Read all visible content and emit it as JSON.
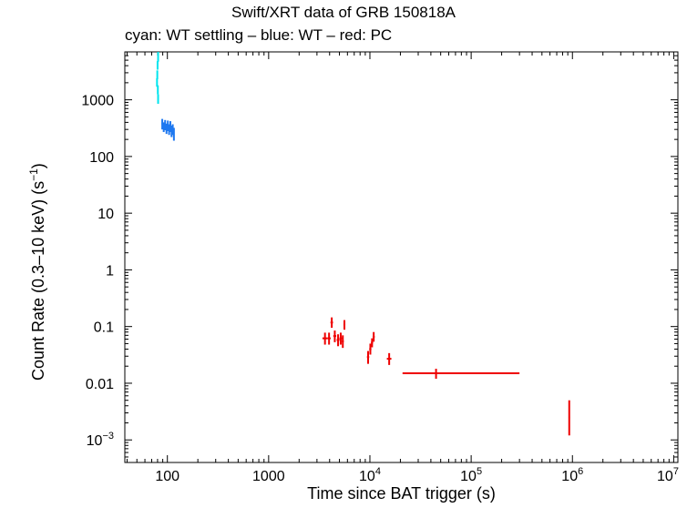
{
  "chart_data": {
    "type": "scatter",
    "title": "Swift/XRT data of GRB 150818A",
    "subtitle": "cyan: WT settling – blue: WT – red: PC",
    "xlabel": "Time since BAT trigger (s)",
    "ylabel": {
      "main": "Count Rate (0.3–10 keV) (s",
      "exp": "−1",
      "close": ")"
    },
    "xscale": "log",
    "yscale": "log",
    "xlim": [
      38,
      11000000
    ],
    "ylim": [
      0.0004,
      7000
    ],
    "x_ticks": [
      {
        "value": 100,
        "label": "100"
      },
      {
        "value": 1000,
        "label": "1000"
      },
      {
        "value": 10000,
        "base": "10",
        "exp": "4"
      },
      {
        "value": 100000,
        "base": "10",
        "exp": "5"
      },
      {
        "value": 1000000,
        "base": "10",
        "exp": "6"
      },
      {
        "value": 10000000,
        "base": "10",
        "exp": "7"
      }
    ],
    "y_ticks": [
      {
        "value": 0.001,
        "base": "10",
        "exp": "−3"
      },
      {
        "value": 0.01,
        "label": "0.01"
      },
      {
        "value": 0.1,
        "label": "0.1"
      },
      {
        "value": 1,
        "label": "1"
      },
      {
        "value": 10,
        "label": "10"
      },
      {
        "value": 100,
        "label": "100"
      },
      {
        "value": 1000,
        "label": "1000"
      }
    ],
    "series": [
      {
        "name": "WT settling",
        "color": "#00e5ee",
        "points": [
          {
            "x": 81,
            "xerr": 0.5,
            "y": 5500,
            "ylo": 4700,
            "yhi": 7000
          },
          {
            "x": 80,
            "xerr": 0.5,
            "y": 4000,
            "ylo": 3400,
            "yhi": 4800
          },
          {
            "x": 79.5,
            "xerr": 0.5,
            "y": 2800,
            "ylo": 2300,
            "yhi": 3300
          },
          {
            "x": 79,
            "xerr": 0.5,
            "y": 2000,
            "ylo": 1700,
            "yhi": 2400
          },
          {
            "x": 80.5,
            "xerr": 0.5,
            "y": 1500,
            "ylo": 1250,
            "yhi": 1800
          },
          {
            "x": 81,
            "xerr": 0.5,
            "y": 1050,
            "ylo": 850,
            "yhi": 1250
          }
        ]
      },
      {
        "name": "WT",
        "color": "#1e78f0",
        "points": [
          {
            "x": 89,
            "xerr": 1.5,
            "y": 380,
            "ylo": 300,
            "yhi": 460
          },
          {
            "x": 92,
            "xerr": 1.5,
            "y": 330,
            "ylo": 270,
            "yhi": 400
          },
          {
            "x": 95,
            "xerr": 1.5,
            "y": 360,
            "ylo": 290,
            "yhi": 440
          },
          {
            "x": 98,
            "xerr": 1.5,
            "y": 310,
            "ylo": 250,
            "yhi": 380
          },
          {
            "x": 101,
            "xerr": 1.5,
            "y": 350,
            "ylo": 280,
            "yhi": 430
          },
          {
            "x": 104,
            "xerr": 1.5,
            "y": 300,
            "ylo": 240,
            "yhi": 370
          },
          {
            "x": 107,
            "xerr": 1.5,
            "y": 340,
            "ylo": 270,
            "yhi": 420
          },
          {
            "x": 110,
            "xerr": 1.5,
            "y": 280,
            "ylo": 220,
            "yhi": 350
          },
          {
            "x": 113,
            "xerr": 1.5,
            "y": 300,
            "ylo": 240,
            "yhi": 370
          },
          {
            "x": 116,
            "xerr": 1.5,
            "y": 250,
            "ylo": 190,
            "yhi": 320
          }
        ]
      },
      {
        "name": "PC",
        "color": "#ee0000",
        "points": [
          {
            "x": 3600,
            "xerr": 200,
            "y": 0.062,
            "ylo": 0.048,
            "yhi": 0.078
          },
          {
            "x": 3950,
            "xerr": 150,
            "y": 0.062,
            "ylo": 0.048,
            "yhi": 0.078
          },
          {
            "x": 4200,
            "xerr": 120,
            "y": 0.118,
            "ylo": 0.095,
            "yhi": 0.145
          },
          {
            "x": 4500,
            "xerr": 150,
            "y": 0.068,
            "ylo": 0.053,
            "yhi": 0.085
          },
          {
            "x": 4850,
            "xerr": 150,
            "y": 0.058,
            "ylo": 0.045,
            "yhi": 0.073
          },
          {
            "x": 5150,
            "xerr": 150,
            "y": 0.062,
            "ylo": 0.048,
            "yhi": 0.078
          },
          {
            "x": 5400,
            "xerr": 120,
            "y": 0.055,
            "ylo": 0.042,
            "yhi": 0.07
          },
          {
            "x": 5600,
            "xerr": 120,
            "y": 0.108,
            "ylo": 0.088,
            "yhi": 0.13
          },
          {
            "x": 9600,
            "xerr": 250,
            "y": 0.029,
            "ylo": 0.022,
            "yhi": 0.037
          },
          {
            "x": 10100,
            "xerr": 250,
            "y": 0.04,
            "ylo": 0.032,
            "yhi": 0.05
          },
          {
            "x": 10500,
            "xerr": 250,
            "y": 0.052,
            "ylo": 0.043,
            "yhi": 0.062
          },
          {
            "x": 10900,
            "xerr": 250,
            "y": 0.066,
            "ylo": 0.054,
            "yhi": 0.08
          },
          {
            "x": 15500,
            "xerr": 800,
            "y": 0.027,
            "ylo": 0.021,
            "yhi": 0.034
          },
          {
            "x": 45000,
            "xlo": 21000,
            "xhi": 300000,
            "y": 0.015,
            "ylo": 0.012,
            "yhi": 0.018
          },
          {
            "x": 930000,
            "xerr": 15000,
            "y": 0.0025,
            "ylo": 0.0012,
            "yhi": 0.005
          }
        ]
      }
    ]
  }
}
